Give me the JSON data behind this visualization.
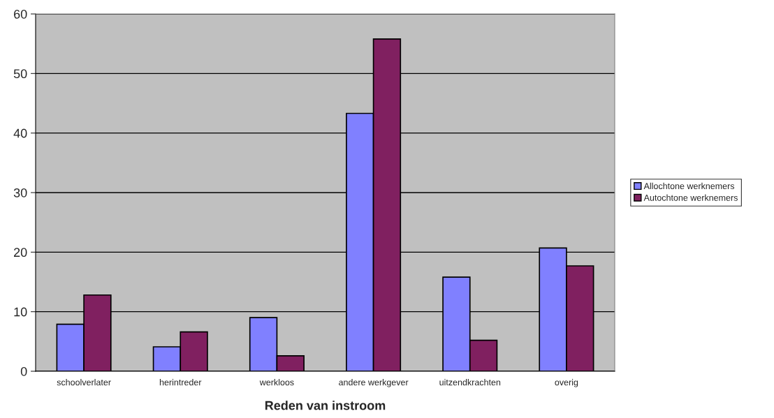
{
  "chart_data": {
    "type": "bar",
    "xlabel": "Reden van instroom",
    "categories": [
      "schoolverlater",
      "herintreder",
      "werkloos",
      "andere werkgever",
      "uitzendkrachten",
      "overig"
    ],
    "series": [
      {
        "name": "Allochtone werknemers",
        "color": "#8080ff",
        "values": [
          7.9,
          4.1,
          9.0,
          43.3,
          15.8,
          20.7
        ]
      },
      {
        "name": "Autochtone werknemers",
        "color": "#802060",
        "values": [
          12.8,
          6.6,
          2.6,
          55.8,
          5.2,
          17.7
        ]
      }
    ],
    "ylim": [
      0,
      60
    ],
    "yticks": [
      0,
      10,
      20,
      30,
      40,
      50,
      60
    ],
    "grid": "y",
    "legend": "right"
  }
}
